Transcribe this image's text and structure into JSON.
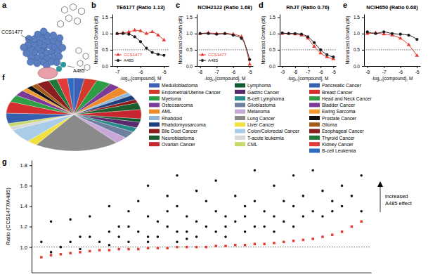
{
  "panel_a": {
    "panel": "a",
    "labels": [
      "CCS1477",
      "A485"
    ]
  },
  "chart_data": [
    {
      "panel": "b",
      "type": "line",
      "title": "TE617T (Ratio 1.13)",
      "x_label": "-log₁₀[compound], M",
      "y_label": "Normalized Growth (d6)",
      "x": [
        -7,
        -6.75,
        -6.5,
        -6.25,
        -6,
        -5.75,
        -5.5,
        -5.25,
        -5
      ],
      "xlim": [
        -7.2,
        -4.8
      ],
      "xticks": [
        -7,
        -6,
        -5
      ],
      "ylim": [
        0,
        1.6
      ],
      "yticks": [
        {
          "value": 0,
          "label": "0.0"
        },
        {
          "value": 0.5,
          "label": "0.5"
        },
        {
          "value": 1,
          "label": "1.0"
        },
        {
          "value": 1.5,
          "label": "1.5"
        }
      ],
      "threshold": 0.5,
      "legend": "lower left",
      "series": [
        {
          "name": "CCS1477",
          "color": "#e53a2f",
          "marker": "triangle",
          "values": [
            1.0,
            1.02,
            1.05,
            1.1,
            1.08,
            1.0,
            1.05,
            0.95,
            0.8
          ]
        },
        {
          "name": "A485",
          "color": "#1a1a1a",
          "marker": "circle",
          "values": [
            1.0,
            1.0,
            0.98,
            0.9,
            0.75,
            0.55,
            0.42,
            0.36,
            0.33
          ]
        }
      ]
    },
    {
      "panel": "c",
      "type": "line",
      "title": "NCIH2122 (Ratio 1.68)",
      "x_label": "-log₁₀[compound], M",
      "y_label": "Normalized Growth (d6)",
      "x": [
        -8,
        -7.5,
        -7,
        -6.5,
        -6,
        -5.5,
        -5
      ],
      "xlim": [
        -8.2,
        -4.8
      ],
      "xticks": [
        -8,
        -7,
        -6,
        -5
      ],
      "ylim": [
        0,
        1.6
      ],
      "yticks": [
        {
          "value": 0,
          "label": "0.0"
        },
        {
          "value": 0.5,
          "label": "0.5"
        },
        {
          "value": 1,
          "label": "1.0"
        },
        {
          "value": 1.5,
          "label": "1.5"
        }
      ],
      "threshold": 0.5,
      "legend": "lower left",
      "series": [
        {
          "name": "CCS1477",
          "color": "#e53a2f",
          "marker": "triangle",
          "values": [
            1.0,
            1.02,
            1.0,
            1.0,
            0.98,
            0.9,
            0.05
          ]
        },
        {
          "name": "A485",
          "color": "#1a1a1a",
          "marker": "circle",
          "values": [
            1.0,
            1.0,
            0.98,
            1.0,
            0.95,
            0.85,
            0.2
          ]
        }
      ]
    },
    {
      "panel": "d",
      "type": "line",
      "title": "RhJT (Ratio 0.76)",
      "x_label": "-log₁₀[compound], M",
      "y_label": "Normalized Growth (d6)",
      "x": [
        -9,
        -8.5,
        -8,
        -7.5,
        -7,
        -6.5,
        -6,
        -5.5,
        -5
      ],
      "xlim": [
        -9.2,
        -4.8
      ],
      "xticks": [
        -9,
        -8,
        -7,
        -6,
        -5
      ],
      "ylim": [
        0,
        1.6
      ],
      "yticks": [
        {
          "value": 0,
          "label": "0.0"
        },
        {
          "value": 0.5,
          "label": "0.5"
        },
        {
          "value": 1,
          "label": "1.0"
        },
        {
          "value": 1.5,
          "label": "1.5"
        }
      ],
      "threshold": 0.5,
      "series": [
        {
          "color": "#e53a2f",
          "marker": "triangle",
          "values": [
            1.0,
            1.0,
            0.98,
            0.95,
            0.85,
            0.6,
            0.4,
            0.28,
            0.22
          ]
        },
        {
          "color": "#1a1a1a",
          "marker": "circle",
          "values": [
            1.02,
            1.0,
            1.0,
            0.98,
            0.9,
            0.72,
            0.5,
            0.35,
            0.28
          ]
        }
      ]
    },
    {
      "panel": "e",
      "type": "line",
      "title": "NCIH650 (Ratio 0.68)",
      "x_label": "-log₁₀[compound], M",
      "y_label": "Normalized Growth (d6)",
      "x": [
        -8,
        -7.5,
        -7,
        -6.5,
        -6,
        -5.5,
        -5
      ],
      "xlim": [
        -8.2,
        -4.8
      ],
      "xticks": [
        -8,
        -7,
        -6,
        -5
      ],
      "ylim": [
        0,
        1.6
      ],
      "yticks": [
        {
          "value": 0,
          "label": "0.0"
        },
        {
          "value": 0.5,
          "label": "0.5"
        },
        {
          "value": 1,
          "label": "1.0"
        },
        {
          "value": 1.5,
          "label": "1.5"
        }
      ],
      "threshold": 0.5,
      "series": [
        {
          "color": "#e53a2f",
          "marker": "triangle",
          "values": [
            1.0,
            1.02,
            0.98,
            0.95,
            0.85,
            0.65,
            0.32
          ]
        },
        {
          "color": "#1a1a1a",
          "marker": "circle",
          "values": [
            1.05,
            1.0,
            1.05,
            1.0,
            0.98,
            0.95,
            0.82
          ]
        }
      ]
    },
    {
      "panel": "f",
      "type": "pie",
      "legend": "right",
      "categories": [
        "Medulloblastoma",
        "Endometrial/Uterine Cancer",
        "Myeloma",
        "Osteosarcoma",
        "AML",
        "Rhabdoid",
        "Rhabdomyosarcoma",
        "Bile Duct Cancer",
        "Neuroblastoma",
        "Ovarian Cancer",
        "Lymphoma",
        "Gastric Cancer",
        "B-cell Lymphoma",
        "Glioblastoma",
        "Melanoma",
        "Lung Cancer",
        "Liver Cancer",
        "Colon/Colorectal Cancer",
        "T-acute leukemia",
        "CML",
        "Pancreatic Cancer",
        "Breast Cancer",
        "Head and Neck Cancer",
        "Bladder Cancer",
        "Ewing Sarcoma",
        "Prostate Cancer",
        "Glioma",
        "Esophageal Cancer",
        "Thyroid Cancer",
        "Kidney Cancer",
        "B-cell Leukemia"
      ],
      "values": [
        5,
        6,
        7,
        5,
        6,
        3,
        4,
        3,
        6,
        8,
        3,
        5,
        4,
        6,
        6,
        40,
        5,
        12,
        3,
        3,
        9,
        10,
        6,
        5,
        3,
        3,
        3,
        6,
        4,
        5,
        3
      ],
      "colors": [
        "#3d5fb5",
        "#d33a2c",
        "#2e9c46",
        "#7a3c96",
        "#f08b2d",
        "#8fb6da",
        "#1c3f7d",
        "#8e1b1b",
        "#195e2c",
        "#c8262f",
        "#0f5a30",
        "#5a2a6e",
        "#2a8a8a",
        "#6e7fa0",
        "#c8a8d8",
        "#8a8a8a",
        "#f0e040",
        "#a9cde8",
        "#d8d8d8",
        "#c8d96a",
        "#3560b0",
        "#d62f2f",
        "#2f9e44",
        "#7a3a96",
        "#f39a2e",
        "#111111",
        "#a35a1a",
        "#8b1e1e",
        "#1e7a3a",
        "#e03a3a",
        "#2d6cc0"
      ]
    },
    {
      "panel": "g",
      "type": "scatter",
      "y_label": "Ratio (CCS1477/A485)",
      "annotation": [
        "increased",
        "A485 effect"
      ],
      "xlim": [
        0,
        35
      ],
      "ylim": [
        0.75,
        1.85
      ],
      "yticks": [
        {
          "value": 1,
          "label": "1.0"
        },
        {
          "value": 1.2,
          "label": "1.2"
        },
        {
          "value": 1.4,
          "label": "1.4"
        },
        {
          "value": 1.6,
          "label": "1.6"
        },
        {
          "value": 1.8,
          "label": "1.8"
        }
      ],
      "tick_labels": "y",
      "threshold": 1.0,
      "series": [
        {
          "color": "#111111",
          "marker": "circle",
          "x": [
            1,
            2,
            2,
            3,
            4,
            4,
            5,
            5,
            6,
            6,
            7,
            8,
            8,
            8,
            9,
            9,
            10,
            10,
            10,
            11,
            11,
            12,
            12,
            12,
            12,
            13,
            13,
            14,
            14,
            14,
            15,
            15,
            15,
            15,
            16,
            16,
            16,
            17,
            17,
            17,
            18,
            18,
            19,
            19,
            19,
            20,
            20,
            20,
            21,
            21,
            22,
            22,
            22,
            23,
            23,
            23,
            24,
            24,
            25,
            25,
            25,
            26,
            26,
            27,
            27,
            27,
            28,
            28,
            29,
            29,
            30,
            30,
            31,
            31,
            32,
            32,
            33,
            34,
            34
          ],
          "values": [
            1.05,
            1.25,
            0.95,
            1.0,
            1.27,
            1.05,
            1.1,
            0.98,
            1.3,
            1.1,
            1.05,
            1.4,
            1.15,
            1.02,
            1.2,
            1.1,
            1.35,
            1.2,
            1.05,
            1.45,
            1.15,
            1.6,
            1.3,
            1.1,
            1.05,
            1.25,
            1.1,
            1.5,
            1.35,
            1.2,
            1.7,
            1.4,
            1.15,
            1.05,
            1.3,
            1.15,
            1.08,
            1.55,
            1.25,
            1.1,
            1.45,
            1.2,
            1.65,
            1.35,
            1.15,
            1.3,
            1.2,
            1.1,
            1.5,
            1.25,
            1.4,
            1.3,
            1.15,
            1.75,
            1.45,
            1.2,
            1.35,
            1.2,
            1.6,
            1.3,
            1.15,
            1.45,
            1.25,
            1.7,
            1.4,
            1.2,
            1.5,
            1.3,
            1.75,
            1.35,
            1.55,
            1.3,
            1.45,
            1.35,
            1.6,
            1.4,
            1.5,
            1.7,
            1.35
          ]
        },
        {
          "color": "#e53a2f",
          "marker": "square",
          "x": [
            1,
            2,
            3,
            4,
            5,
            6,
            7,
            8,
            9,
            10,
            11,
            12,
            13,
            14,
            15,
            16,
            17,
            18,
            19,
            20,
            21,
            22,
            23,
            24,
            25,
            26,
            27,
            28,
            29,
            30,
            31,
            32,
            33,
            34
          ],
          "values": [
            0.9,
            0.92,
            0.93,
            0.94,
            0.95,
            0.96,
            0.97,
            0.97,
            0.98,
            0.98,
            0.98,
            0.99,
            0.99,
            0.99,
            1.0,
            1.0,
            1.0,
            1.0,
            1.01,
            1.01,
            1.02,
            1.02,
            1.03,
            1.03,
            1.04,
            1.05,
            1.06,
            1.07,
            1.08,
            1.1,
            1.12,
            1.15,
            1.2,
            1.25
          ]
        }
      ]
    }
  ]
}
